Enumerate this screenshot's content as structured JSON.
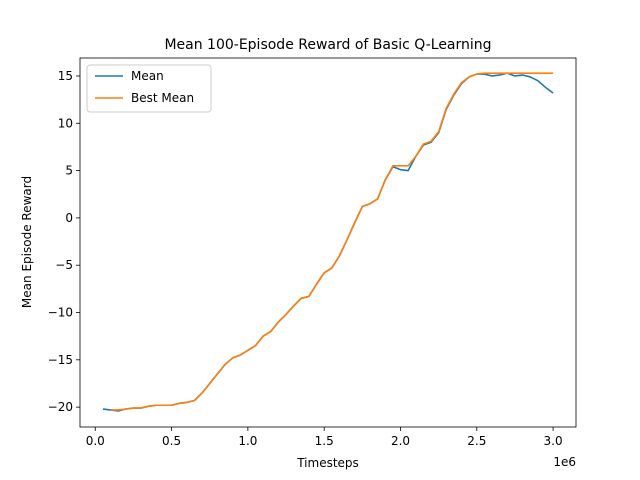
{
  "chart_data": {
    "type": "line",
    "title": "Mean 100-Episode Reward of Basic Q-Learning",
    "xlabel": "Timesteps",
    "ylabel": "Mean Episode Reward",
    "x_offset_label": "1e6",
    "xlim": [
      -0.1,
      3.15
    ],
    "ylim": [
      -22.1,
      16.9
    ],
    "xticks": [
      0.0,
      0.5,
      1.0,
      1.5,
      2.0,
      2.5,
      3.0
    ],
    "xtick_labels": [
      "0.0",
      "0.5",
      "1.0",
      "1.5",
      "2.0",
      "2.5",
      "3.0"
    ],
    "yticks": [
      -20,
      -15,
      -10,
      -5,
      0,
      5,
      10,
      15
    ],
    "ytick_labels": [
      "−20",
      "−15",
      "−10",
      "−5",
      "0",
      "5",
      "10",
      "15"
    ],
    "grid": false,
    "legend_position": "top-left",
    "series": [
      {
        "name": "Mean",
        "color": "#1f77b4",
        "x": [
          0.05,
          0.1,
          0.15,
          0.2,
          0.25,
          0.3,
          0.35,
          0.4,
          0.45,
          0.5,
          0.55,
          0.6,
          0.65,
          0.7,
          0.75,
          0.8,
          0.85,
          0.9,
          0.95,
          1.0,
          1.05,
          1.1,
          1.15,
          1.2,
          1.25,
          1.3,
          1.35,
          1.4,
          1.45,
          1.5,
          1.55,
          1.6,
          1.65,
          1.7,
          1.75,
          1.8,
          1.85,
          1.9,
          1.95,
          2.0,
          2.05,
          2.1,
          2.15,
          2.2,
          2.25,
          2.3,
          2.35,
          2.4,
          2.45,
          2.5,
          2.55,
          2.6,
          2.65,
          2.7,
          2.75,
          2.8,
          2.85,
          2.9,
          2.95,
          3.0
        ],
        "y": [
          -20.2,
          -20.3,
          -20.4,
          -20.2,
          -20.1,
          -20.1,
          -19.9,
          -19.8,
          -19.8,
          -19.8,
          -19.6,
          -19.5,
          -19.3,
          -18.5,
          -17.5,
          -16.5,
          -15.5,
          -14.8,
          -14.5,
          -14.0,
          -13.5,
          -12.5,
          -12.0,
          -11.0,
          -10.2,
          -9.3,
          -8.5,
          -8.3,
          -7.0,
          -5.8,
          -5.3,
          -4.0,
          -2.3,
          -0.5,
          1.2,
          1.5,
          2.0,
          4.0,
          5.4,
          5.1,
          5.0,
          6.5,
          7.7,
          8.0,
          9.0,
          11.5,
          13.0,
          14.2,
          14.9,
          15.2,
          15.2,
          15.0,
          15.1,
          15.3,
          15.0,
          15.1,
          14.9,
          14.5,
          13.8,
          13.2
        ]
      },
      {
        "name": "Best Mean",
        "color": "#ff7f0e",
        "x": [
          0.1,
          0.15,
          0.2,
          0.25,
          0.3,
          0.35,
          0.4,
          0.45,
          0.5,
          0.55,
          0.6,
          0.65,
          0.7,
          0.75,
          0.8,
          0.85,
          0.9,
          0.95,
          1.0,
          1.05,
          1.1,
          1.15,
          1.2,
          1.25,
          1.3,
          1.35,
          1.4,
          1.45,
          1.5,
          1.55,
          1.6,
          1.65,
          1.7,
          1.75,
          1.8,
          1.85,
          1.9,
          1.95,
          2.0,
          2.05,
          2.1,
          2.15,
          2.2,
          2.25,
          2.3,
          2.35,
          2.4,
          2.45,
          2.5,
          2.55,
          2.6,
          2.65,
          2.7,
          2.75,
          2.8,
          2.85,
          2.9,
          2.95,
          3.0
        ],
        "y": [
          -20.3,
          -20.3,
          -20.2,
          -20.1,
          -20.1,
          -19.9,
          -19.8,
          -19.8,
          -19.8,
          -19.6,
          -19.5,
          -19.3,
          -18.5,
          -17.5,
          -16.5,
          -15.5,
          -14.8,
          -14.5,
          -14.0,
          -13.5,
          -12.5,
          -12.0,
          -11.0,
          -10.2,
          -9.3,
          -8.5,
          -8.3,
          -7.0,
          -5.8,
          -5.3,
          -4.0,
          -2.3,
          -0.5,
          1.2,
          1.5,
          2.0,
          4.0,
          5.5,
          5.5,
          5.5,
          6.5,
          7.8,
          8.1,
          9.1,
          11.6,
          13.1,
          14.3,
          14.9,
          15.2,
          15.3,
          15.3,
          15.3,
          15.3,
          15.3,
          15.3,
          15.3,
          15.3,
          15.3,
          15.3
        ]
      }
    ]
  }
}
